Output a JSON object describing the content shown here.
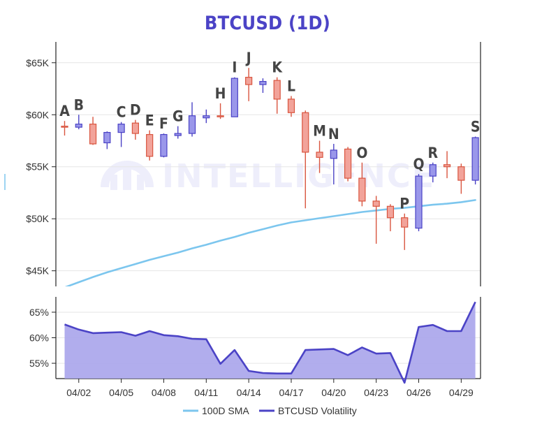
{
  "chart_data": {
    "type": "candlestick",
    "title": "BTCUSD (1D)",
    "watermark": "INTELLIGENCE",
    "colors": {
      "up_fill": "#9a97ea",
      "up_stroke": "#4b43c6",
      "down_fill": "#f2a39a",
      "down_stroke": "#d9553f",
      "sma": "#7cc6ee",
      "volatility_fill": "#a9a4eb",
      "volatility_line": "#4b43c6",
      "title": "#4b43c6"
    },
    "x_ticks": [
      {
        "day": 2,
        "label": "04/02"
      },
      {
        "day": 5,
        "label": "04/05"
      },
      {
        "day": 8,
        "label": "04/08"
      },
      {
        "day": 11,
        "label": "04/11"
      },
      {
        "day": 14,
        "label": "04/14"
      },
      {
        "day": 17,
        "label": "04/17"
      },
      {
        "day": 20,
        "label": "04/20"
      },
      {
        "day": 23,
        "label": "04/23"
      },
      {
        "day": 26,
        "label": "04/26"
      },
      {
        "day": 29,
        "label": "04/29"
      }
    ],
    "price_axis": {
      "ylim": [
        43500,
        67000
      ],
      "ticks": [
        {
          "value": 45000,
          "label": "$45K"
        },
        {
          "value": 50000,
          "label": "$50K"
        },
        {
          "value": 55000,
          "label": "$55K"
        },
        {
          "value": 60000,
          "label": "$60K"
        },
        {
          "value": 65000,
          "label": "$65K"
        }
      ]
    },
    "volatility_axis": {
      "ylim": [
        52,
        68
      ],
      "ticks": [
        {
          "value": 55,
          "label": "55%"
        },
        {
          "value": 60,
          "label": "60%"
        },
        {
          "value": 65,
          "label": "65%"
        }
      ]
    },
    "candles": [
      {
        "day": 1,
        "open": 58900,
        "high": 59400,
        "low": 58000,
        "close": 58850
      },
      {
        "day": 2,
        "open": 58800,
        "high": 60000,
        "low": 58600,
        "close": 59100
      },
      {
        "day": 3,
        "open": 59100,
        "high": 59800,
        "low": 57100,
        "close": 57200
      },
      {
        "day": 4,
        "open": 57300,
        "high": 58400,
        "low": 56700,
        "close": 58300
      },
      {
        "day": 5,
        "open": 58300,
        "high": 59300,
        "low": 56900,
        "close": 59100
      },
      {
        "day": 6,
        "open": 59200,
        "high": 59500,
        "low": 57600,
        "close": 58200
      },
      {
        "day": 7,
        "open": 58100,
        "high": 58500,
        "low": 55600,
        "close": 56000
      },
      {
        "day": 8,
        "open": 56000,
        "high": 58200,
        "low": 55900,
        "close": 58100
      },
      {
        "day": 9,
        "open": 58000,
        "high": 58900,
        "low": 57700,
        "close": 58200
      },
      {
        "day": 10,
        "open": 58200,
        "high": 61200,
        "low": 57900,
        "close": 59900
      },
      {
        "day": 11,
        "open": 59700,
        "high": 60500,
        "low": 59200,
        "close": 59900
      },
      {
        "day": 12,
        "open": 59900,
        "high": 61100,
        "low": 59600,
        "close": 59800
      },
      {
        "day": 13,
        "open": 59800,
        "high": 63600,
        "low": 59800,
        "close": 63500
      },
      {
        "day": 14,
        "open": 63600,
        "high": 64500,
        "low": 61300,
        "close": 62900
      },
      {
        "day": 15,
        "open": 62900,
        "high": 63500,
        "low": 62100,
        "close": 63200
      },
      {
        "day": 16,
        "open": 63300,
        "high": 63600,
        "low": 60100,
        "close": 61500
      },
      {
        "day": 17,
        "open": 61500,
        "high": 61800,
        "low": 59800,
        "close": 60200
      },
      {
        "day": 18,
        "open": 60200,
        "high": 60400,
        "low": 51000,
        "close": 56400
      },
      {
        "day": 19,
        "open": 56400,
        "high": 57500,
        "low": 54400,
        "close": 55900
      },
      {
        "day": 20,
        "open": 55800,
        "high": 57200,
        "low": 53300,
        "close": 56600
      },
      {
        "day": 21,
        "open": 56700,
        "high": 56900,
        "low": 53600,
        "close": 53900
      },
      {
        "day": 22,
        "open": 53900,
        "high": 55400,
        "low": 51200,
        "close": 51700
      },
      {
        "day": 23,
        "open": 51700,
        "high": 52200,
        "low": 47600,
        "close": 51200
      },
      {
        "day": 24,
        "open": 51200,
        "high": 51400,
        "low": 48800,
        "close": 50100
      },
      {
        "day": 25,
        "open": 50100,
        "high": 50500,
        "low": 47000,
        "close": 49200
      },
      {
        "day": 26,
        "open": 49100,
        "high": 54300,
        "low": 48800,
        "close": 54100
      },
      {
        "day": 27,
        "open": 54100,
        "high": 55400,
        "low": 53500,
        "close": 55200
      },
      {
        "day": 28,
        "open": 55200,
        "high": 56500,
        "low": 53900,
        "close": 55000
      },
      {
        "day": 29,
        "open": 55000,
        "high": 55300,
        "low": 52400,
        "close": 53700
      },
      {
        "day": 30,
        "open": 53700,
        "high": 57900,
        "low": 53300,
        "close": 57800
      }
    ],
    "annotations": [
      {
        "label": "A",
        "day": 1
      },
      {
        "label": "B",
        "day": 2
      },
      {
        "label": "C",
        "day": 5
      },
      {
        "label": "D",
        "day": 6
      },
      {
        "label": "E",
        "day": 7
      },
      {
        "label": "F",
        "day": 8
      },
      {
        "label": "G",
        "day": 9
      },
      {
        "label": "H",
        "day": 12
      },
      {
        "label": "I",
        "day": 13
      },
      {
        "label": "J",
        "day": 14
      },
      {
        "label": "K",
        "day": 16
      },
      {
        "label": "L",
        "day": 17
      },
      {
        "label": "M",
        "day": 19
      },
      {
        "label": "N",
        "day": 20
      },
      {
        "label": "O",
        "day": 22
      },
      {
        "label": "P",
        "day": 25
      },
      {
        "label": "Q",
        "day": 26
      },
      {
        "label": "R",
        "day": 27
      },
      {
        "label": "S",
        "day": 30
      }
    ],
    "series": [
      {
        "name": "100D SMA",
        "type": "line",
        "days": [
          1,
          2,
          3,
          4,
          5,
          6,
          7,
          8,
          9,
          10,
          11,
          12,
          13,
          14,
          15,
          16,
          17,
          18,
          19,
          20,
          21,
          22,
          23,
          24,
          25,
          26,
          27,
          28,
          29,
          30
        ],
        "values": [
          43400,
          43900,
          44400,
          44850,
          45250,
          45650,
          46050,
          46400,
          46750,
          47150,
          47500,
          47900,
          48250,
          48650,
          49000,
          49350,
          49650,
          49850,
          50050,
          50250,
          50450,
          50650,
          50800,
          50950,
          51050,
          51200,
          51350,
          51450,
          51600,
          51800
        ]
      },
      {
        "name": "BTCUSD Volatility",
        "type": "area",
        "days": [
          1,
          2,
          3,
          4,
          5,
          6,
          7,
          8,
          9,
          10,
          11,
          12,
          13,
          14,
          15,
          16,
          17,
          18,
          19,
          20,
          21,
          22,
          23,
          24,
          25,
          26,
          27,
          28,
          29,
          30
        ],
        "values": [
          62.6,
          61.6,
          60.9,
          61.0,
          61.1,
          60.4,
          61.3,
          60.5,
          60.3,
          59.8,
          59.7,
          54.9,
          57.6,
          53.5,
          53.1,
          53.0,
          53.0,
          57.6,
          57.7,
          57.8,
          56.6,
          58.1,
          56.9,
          57.0,
          51.2,
          62.1,
          62.5,
          61.3,
          61.3,
          67.0
        ]
      }
    ]
  }
}
